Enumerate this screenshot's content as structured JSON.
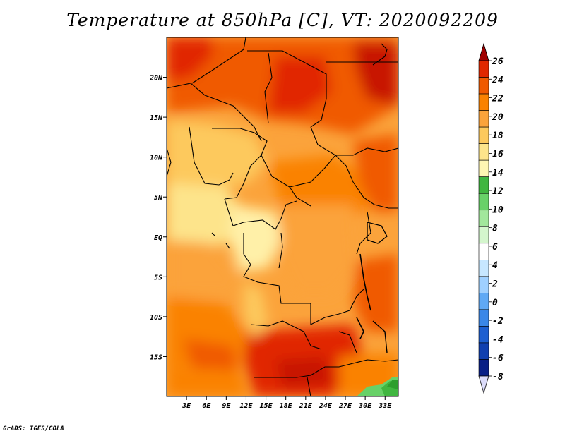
{
  "title": "Temperature at 850hPa [C], VT: 2020092209",
  "credit": "GrADS: IGES/COLA",
  "map": {
    "lon_range": [
      0,
      35
    ],
    "lat_range": [
      -20,
      25
    ],
    "lon_ticks": [
      "3E",
      "6E",
      "9E",
      "12E",
      "15E",
      "18E",
      "21E",
      "24E",
      "27E",
      "30E",
      "33E"
    ],
    "lat_ticks": [
      "20N",
      "15N",
      "10N",
      "5N",
      "EQ",
      "5S",
      "10S",
      "15S"
    ]
  },
  "colorbar": {
    "labels": [
      "26",
      "24",
      "22",
      "20",
      "18",
      "16",
      "14",
      "12",
      "10",
      "8",
      "6",
      "4",
      "2",
      "0",
      "-2",
      "-4",
      "-6",
      "-8"
    ],
    "colors": [
      "#a00000",
      "#e12800",
      "#f05a00",
      "#fa8200",
      "#fba33b",
      "#fdc95d",
      "#fde48b",
      "#fff6b3",
      "#40b640",
      "#68d168",
      "#a2e79c",
      "#d4f6cd",
      "#ffffff",
      "#c7e7ff",
      "#9fd0ff",
      "#5fa9f5",
      "#3a87e8",
      "#1d5fd1",
      "#1040b0",
      "#081f86",
      "#dcdcfa"
    ]
  }
}
